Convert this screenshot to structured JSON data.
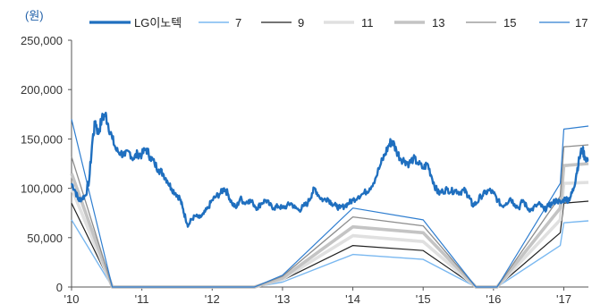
{
  "chart_data": {
    "type": "line",
    "unit_label": "(원)",
    "y_ticks": [
      "0",
      "50,000",
      "100,000",
      "150,000",
      "200,000",
      "250,000"
    ],
    "y_tick_values": [
      0,
      50000,
      100000,
      150000,
      200000,
      250000
    ],
    "ylim": [
      0,
      250000
    ],
    "x_ticks": [
      "'10",
      "'11",
      "'12",
      "'13",
      "'14",
      "'15",
      "'16",
      "'17"
    ],
    "x_tick_values": [
      2010,
      2011,
      2012,
      2013,
      2014,
      2015,
      2016,
      2017
    ],
    "xlim": [
      2010,
      2017.35
    ],
    "grid": false,
    "legend_position": "top",
    "stock": {
      "name": "LG이노텍",
      "color": "#1f6fbf",
      "points": [
        [
          2010.0,
          105000
        ],
        [
          2010.05,
          98000
        ],
        [
          2010.1,
          88000
        ],
        [
          2010.15,
          90000
        ],
        [
          2010.2,
          93000
        ],
        [
          2010.25,
          108000
        ],
        [
          2010.3,
          150000
        ],
        [
          2010.34,
          168000
        ],
        [
          2010.38,
          155000
        ],
        [
          2010.43,
          170000
        ],
        [
          2010.48,
          175000
        ],
        [
          2010.52,
          165000
        ],
        [
          2010.58,
          150000
        ],
        [
          2010.64,
          138000
        ],
        [
          2010.7,
          136000
        ],
        [
          2010.76,
          133000
        ],
        [
          2010.82,
          137000
        ],
        [
          2010.88,
          130000
        ],
        [
          2010.94,
          135000
        ],
        [
          2011.0,
          134000
        ],
        [
          2011.06,
          140000
        ],
        [
          2011.12,
          132000
        ],
        [
          2011.18,
          125000
        ],
        [
          2011.24,
          119000
        ],
        [
          2011.3,
          115000
        ],
        [
          2011.36,
          108000
        ],
        [
          2011.42,
          100000
        ],
        [
          2011.48,
          95000
        ],
        [
          2011.54,
          90000
        ],
        [
          2011.58,
          80000
        ],
        [
          2011.62,
          70000
        ],
        [
          2011.66,
          62000
        ],
        [
          2011.7,
          68000
        ],
        [
          2011.76,
          72000
        ],
        [
          2011.82,
          70000
        ],
        [
          2011.88,
          74000
        ],
        [
          2011.94,
          80000
        ],
        [
          2012.0,
          88000
        ],
        [
          2012.06,
          92000
        ],
        [
          2012.12,
          95000
        ],
        [
          2012.17,
          100000
        ],
        [
          2012.22,
          95000
        ],
        [
          2012.28,
          85000
        ],
        [
          2012.34,
          80000
        ],
        [
          2012.4,
          90000
        ],
        [
          2012.46,
          85000
        ],
        [
          2012.52,
          88000
        ],
        [
          2012.58,
          85000
        ],
        [
          2012.64,
          80000
        ],
        [
          2012.7,
          85000
        ],
        [
          2012.76,
          88000
        ],
        [
          2012.82,
          83000
        ],
        [
          2012.88,
          80000
        ],
        [
          2012.94,
          82000
        ],
        [
          2013.0,
          80000
        ],
        [
          2013.06,
          82000
        ],
        [
          2013.12,
          85000
        ],
        [
          2013.18,
          80000
        ],
        [
          2013.24,
          78000
        ],
        [
          2013.3,
          82000
        ],
        [
          2013.36,
          85000
        ],
        [
          2013.42,
          95000
        ],
        [
          2013.46,
          100000
        ],
        [
          2013.52,
          92000
        ],
        [
          2013.58,
          88000
        ],
        [
          2013.64,
          90000
        ],
        [
          2013.7,
          85000
        ],
        [
          2013.76,
          82000
        ],
        [
          2013.82,
          80000
        ],
        [
          2013.88,
          82000
        ],
        [
          2013.94,
          85000
        ],
        [
          2014.0,
          88000
        ],
        [
          2014.08,
          92000
        ],
        [
          2014.16,
          95000
        ],
        [
          2014.24,
          100000
        ],
        [
          2014.32,
          110000
        ],
        [
          2014.4,
          125000
        ],
        [
          2014.46,
          135000
        ],
        [
          2014.52,
          145000
        ],
        [
          2014.56,
          148000
        ],
        [
          2014.62,
          138000
        ],
        [
          2014.68,
          130000
        ],
        [
          2014.74,
          128000
        ],
        [
          2014.8,
          125000
        ],
        [
          2014.86,
          130000
        ],
        [
          2014.92,
          126000
        ],
        [
          2015.0,
          120000
        ],
        [
          2015.06,
          125000
        ],
        [
          2015.12,
          112000
        ],
        [
          2015.18,
          100000
        ],
        [
          2015.22,
          95000
        ],
        [
          2015.28,
          97000
        ],
        [
          2015.34,
          99000
        ],
        [
          2015.4,
          97000
        ],
        [
          2015.46,
          98000
        ],
        [
          2015.52,
          96000
        ],
        [
          2015.58,
          98000
        ],
        [
          2015.62,
          95000
        ],
        [
          2015.66,
          90000
        ],
        [
          2015.7,
          83000
        ],
        [
          2015.76,
          85000
        ],
        [
          2015.82,
          92000
        ],
        [
          2015.88,
          95000
        ],
        [
          2015.94,
          98000
        ],
        [
          2016.0,
          95000
        ],
        [
          2016.06,
          88000
        ],
        [
          2016.12,
          82000
        ],
        [
          2016.18,
          85000
        ],
        [
          2016.24,
          90000
        ],
        [
          2016.3,
          84000
        ],
        [
          2016.36,
          80000
        ],
        [
          2016.42,
          88000
        ],
        [
          2016.48,
          80000
        ],
        [
          2016.54,
          78000
        ],
        [
          2016.6,
          82000
        ],
        [
          2016.66,
          84000
        ],
        [
          2016.72,
          78000
        ],
        [
          2016.78,
          82000
        ],
        [
          2016.84,
          85000
        ],
        [
          2016.9,
          88000
        ],
        [
          2016.96,
          85000
        ],
        [
          2017.02,
          90000
        ],
        [
          2017.06,
          88000
        ],
        [
          2017.1,
          92000
        ],
        [
          2017.14,
          100000
        ],
        [
          2017.18,
          115000
        ],
        [
          2017.22,
          130000
        ],
        [
          2017.26,
          140000
        ],
        [
          2017.3,
          132000
        ],
        [
          2017.35,
          128000
        ]
      ]
    },
    "series": [
      {
        "name": "7",
        "color": "#7ab8f0",
        "width": 1.4,
        "points": [
          [
            2010.0,
            68000
          ],
          [
            2010.58,
            0
          ],
          [
            2012.6,
            0
          ],
          [
            2013.0,
            5000
          ],
          [
            2014.0,
            33000
          ],
          [
            2015.0,
            28000
          ],
          [
            2015.75,
            0
          ],
          [
            2016.05,
            0
          ],
          [
            2016.95,
            42000
          ],
          [
            2017.0,
            65000
          ],
          [
            2017.35,
            67000
          ]
        ]
      },
      {
        "name": "9",
        "color": "#222222",
        "width": 1.2,
        "points": [
          [
            2010.0,
            85000
          ],
          [
            2010.58,
            0
          ],
          [
            2012.6,
            0
          ],
          [
            2013.0,
            7000
          ],
          [
            2014.0,
            42000
          ],
          [
            2015.0,
            37000
          ],
          [
            2015.75,
            0
          ],
          [
            2016.05,
            0
          ],
          [
            2016.95,
            55000
          ],
          [
            2017.0,
            85000
          ],
          [
            2017.35,
            87000
          ]
        ]
      },
      {
        "name": "11",
        "color": "#e0e0e0",
        "width": 3.6,
        "points": [
          [
            2010.0,
            100000
          ],
          [
            2010.58,
            0
          ],
          [
            2012.6,
            0
          ],
          [
            2013.0,
            8000
          ],
          [
            2014.0,
            52000
          ],
          [
            2015.0,
            46000
          ],
          [
            2015.75,
            0
          ],
          [
            2016.05,
            0
          ],
          [
            2016.95,
            68000
          ],
          [
            2017.0,
            105000
          ],
          [
            2017.35,
            106000
          ]
        ]
      },
      {
        "name": "13",
        "color": "#c4c4c4",
        "width": 3.6,
        "points": [
          [
            2010.0,
            115000
          ],
          [
            2010.58,
            0
          ],
          [
            2012.6,
            0
          ],
          [
            2013.0,
            9000
          ],
          [
            2014.0,
            61000
          ],
          [
            2015.0,
            55000
          ],
          [
            2015.75,
            0
          ],
          [
            2016.05,
            0
          ],
          [
            2016.95,
            80000
          ],
          [
            2017.0,
            123000
          ],
          [
            2017.35,
            125000
          ]
        ]
      },
      {
        "name": "15",
        "color": "#8c8c8c",
        "width": 1.3,
        "points": [
          [
            2010.0,
            132000
          ],
          [
            2010.58,
            0
          ],
          [
            2012.6,
            0
          ],
          [
            2013.0,
            11000
          ],
          [
            2014.0,
            71000
          ],
          [
            2015.0,
            62000
          ],
          [
            2015.75,
            0
          ],
          [
            2016.05,
            0
          ],
          [
            2016.95,
            92000
          ],
          [
            2017.0,
            142000
          ],
          [
            2017.35,
            144000
          ]
        ]
      },
      {
        "name": "17",
        "color": "#2f7ed0",
        "width": 1.2,
        "points": [
          [
            2010.0,
            170000
          ],
          [
            2010.58,
            0
          ],
          [
            2012.6,
            0
          ],
          [
            2013.0,
            12000
          ],
          [
            2014.0,
            80000
          ],
          [
            2015.0,
            68000
          ],
          [
            2015.75,
            0
          ],
          [
            2016.05,
            0
          ],
          [
            2016.95,
            105000
          ],
          [
            2017.0,
            160000
          ],
          [
            2017.35,
            163000
          ]
        ]
      }
    ]
  }
}
